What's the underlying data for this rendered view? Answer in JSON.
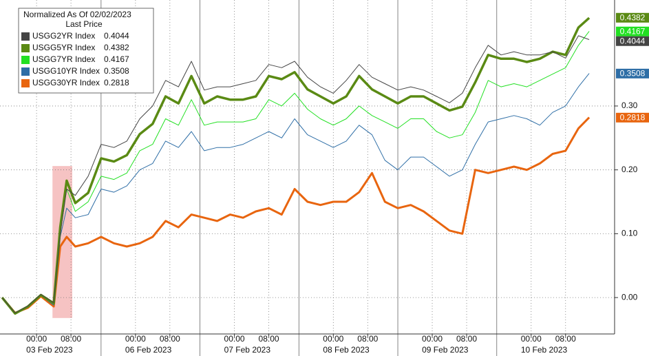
{
  "chart_data": {
    "type": "line",
    "legend_title": "Normalized As Of 02/02/2023",
    "legend_subtitle": "Last Price",
    "legend_position": "upper left",
    "grid": true,
    "x": [
      -8,
      -5,
      -2,
      1,
      4,
      5.5,
      7,
      9,
      12,
      15,
      18,
      21,
      24,
      27,
      30,
      33,
      36,
      39,
      42,
      45,
      48,
      51,
      54,
      57,
      60,
      63,
      66,
      69,
      72,
      75,
      78,
      81,
      84,
      87,
      90,
      93,
      96,
      99,
      102,
      105,
      108,
      111,
      114,
      117,
      120,
      123,
      126,
      128.5
    ],
    "xlim": [
      -8.5,
      134.4
    ],
    "xticks": [
      {
        "value": 0,
        "label": "00:00"
      },
      {
        "value": 8,
        "label": "08:00"
      },
      {
        "value": 23,
        "label": "00:00"
      },
      {
        "value": 31,
        "label": "08:00"
      },
      {
        "value": 46,
        "label": "00:00"
      },
      {
        "value": 54,
        "label": "08:00"
      },
      {
        "value": 69,
        "label": "00:00"
      },
      {
        "value": 77,
        "label": "08:00"
      },
      {
        "value": 92,
        "label": "00:00"
      },
      {
        "value": 100,
        "label": "08:00"
      },
      {
        "value": 115,
        "label": "00:00"
      },
      {
        "value": 123,
        "label": "08:00"
      }
    ],
    "day_ticks": [
      {
        "value": 3,
        "label": "03 Feb 2023"
      },
      {
        "value": 26,
        "label": "06 Feb 2023"
      },
      {
        "value": 49,
        "label": "07 Feb 2023"
      },
      {
        "value": 72,
        "label": "08 Feb 2023"
      },
      {
        "value": 95,
        "label": "09 Feb 2023"
      },
      {
        "value": 118,
        "label": "10 Feb 2023"
      }
    ],
    "day_separators": [
      15,
      38,
      61,
      84,
      107
    ],
    "ylim": [
      -0.057,
      0.466
    ],
    "yticks": [
      {
        "value": 0,
        "label": "0.00"
      },
      {
        "value": 0.1,
        "label": "0.10"
      },
      {
        "value": 0.2,
        "label": "0.20"
      },
      {
        "value": 0.3,
        "label": "0.30"
      }
    ],
    "highlight": {
      "xrange": [
        3.7,
        8.3
      ],
      "yrange": [
        -0.032,
        0.206
      ],
      "color": "#f5b8b8"
    },
    "series": [
      {
        "name": "USGG2YR Index",
        "color": "#444444",
        "width": 1,
        "last_value": 0.4044,
        "values": [
          0.0,
          -0.024,
          -0.013,
          0.005,
          -0.008,
          0.1,
          0.17,
          0.16,
          0.19,
          0.24,
          0.235,
          0.245,
          0.28,
          0.3,
          0.34,
          0.33,
          0.37,
          0.325,
          0.33,
          0.33,
          0.335,
          0.34,
          0.365,
          0.36,
          0.37,
          0.345,
          0.33,
          0.32,
          0.34,
          0.365,
          0.345,
          0.335,
          0.325,
          0.33,
          0.325,
          0.315,
          0.305,
          0.32,
          0.36,
          0.395,
          0.38,
          0.385,
          0.38,
          0.38,
          0.385,
          0.375,
          0.41,
          0.404
        ]
      },
      {
        "name": "USGG5YR Index",
        "color": "#5a8a14",
        "width": 3.5,
        "last_value": 0.4382,
        "values": [
          0.0,
          -0.025,
          -0.014,
          0.004,
          -0.009,
          0.11,
          0.183,
          0.148,
          0.164,
          0.218,
          0.213,
          0.223,
          0.256,
          0.272,
          0.315,
          0.304,
          0.347,
          0.304,
          0.315,
          0.31,
          0.31,
          0.315,
          0.347,
          0.342,
          0.353,
          0.326,
          0.315,
          0.304,
          0.315,
          0.347,
          0.326,
          0.315,
          0.304,
          0.315,
          0.315,
          0.304,
          0.293,
          0.299,
          0.337,
          0.38,
          0.374,
          0.374,
          0.369,
          0.374,
          0.385,
          0.38,
          0.423,
          0.438
        ]
      },
      {
        "name": "USGG7YR Index",
        "color": "#22e022",
        "width": 1,
        "last_value": 0.4167,
        "values": [
          0.0,
          -0.024,
          -0.014,
          0.004,
          -0.01,
          0.1,
          0.17,
          0.135,
          0.15,
          0.19,
          0.185,
          0.195,
          0.23,
          0.24,
          0.28,
          0.27,
          0.31,
          0.27,
          0.275,
          0.275,
          0.275,
          0.28,
          0.31,
          0.3,
          0.32,
          0.295,
          0.28,
          0.27,
          0.28,
          0.3,
          0.285,
          0.275,
          0.265,
          0.28,
          0.28,
          0.26,
          0.25,
          0.255,
          0.29,
          0.34,
          0.33,
          0.335,
          0.33,
          0.34,
          0.35,
          0.36,
          0.395,
          0.417
        ]
      },
      {
        "name": "USGG10YR Index",
        "color": "#2e6ea6",
        "width": 1,
        "last_value": 0.3508,
        "values": [
          0.0,
          -0.024,
          -0.015,
          0.003,
          -0.012,
          0.095,
          0.14,
          0.125,
          0.13,
          0.17,
          0.165,
          0.175,
          0.2,
          0.21,
          0.245,
          0.235,
          0.26,
          0.23,
          0.235,
          0.235,
          0.24,
          0.25,
          0.26,
          0.25,
          0.28,
          0.255,
          0.245,
          0.235,
          0.245,
          0.27,
          0.255,
          0.215,
          0.2,
          0.22,
          0.22,
          0.205,
          0.19,
          0.2,
          0.24,
          0.275,
          0.28,
          0.285,
          0.28,
          0.27,
          0.29,
          0.3,
          0.33,
          0.351
        ]
      },
      {
        "name": "USGG30YR Index",
        "color": "#e8650f",
        "width": 3,
        "last_value": 0.2818,
        "values": [
          0.0,
          -0.024,
          -0.016,
          0.002,
          -0.014,
          0.08,
          0.095,
          0.08,
          0.085,
          0.095,
          0.085,
          0.08,
          0.085,
          0.095,
          0.12,
          0.11,
          0.13,
          0.125,
          0.12,
          0.13,
          0.125,
          0.135,
          0.14,
          0.13,
          0.17,
          0.15,
          0.145,
          0.15,
          0.15,
          0.165,
          0.195,
          0.15,
          0.14,
          0.145,
          0.135,
          0.12,
          0.105,
          0.1,
          0.2,
          0.195,
          0.2,
          0.205,
          0.2,
          0.21,
          0.225,
          0.23,
          0.265,
          0.282
        ]
      }
    ]
  }
}
